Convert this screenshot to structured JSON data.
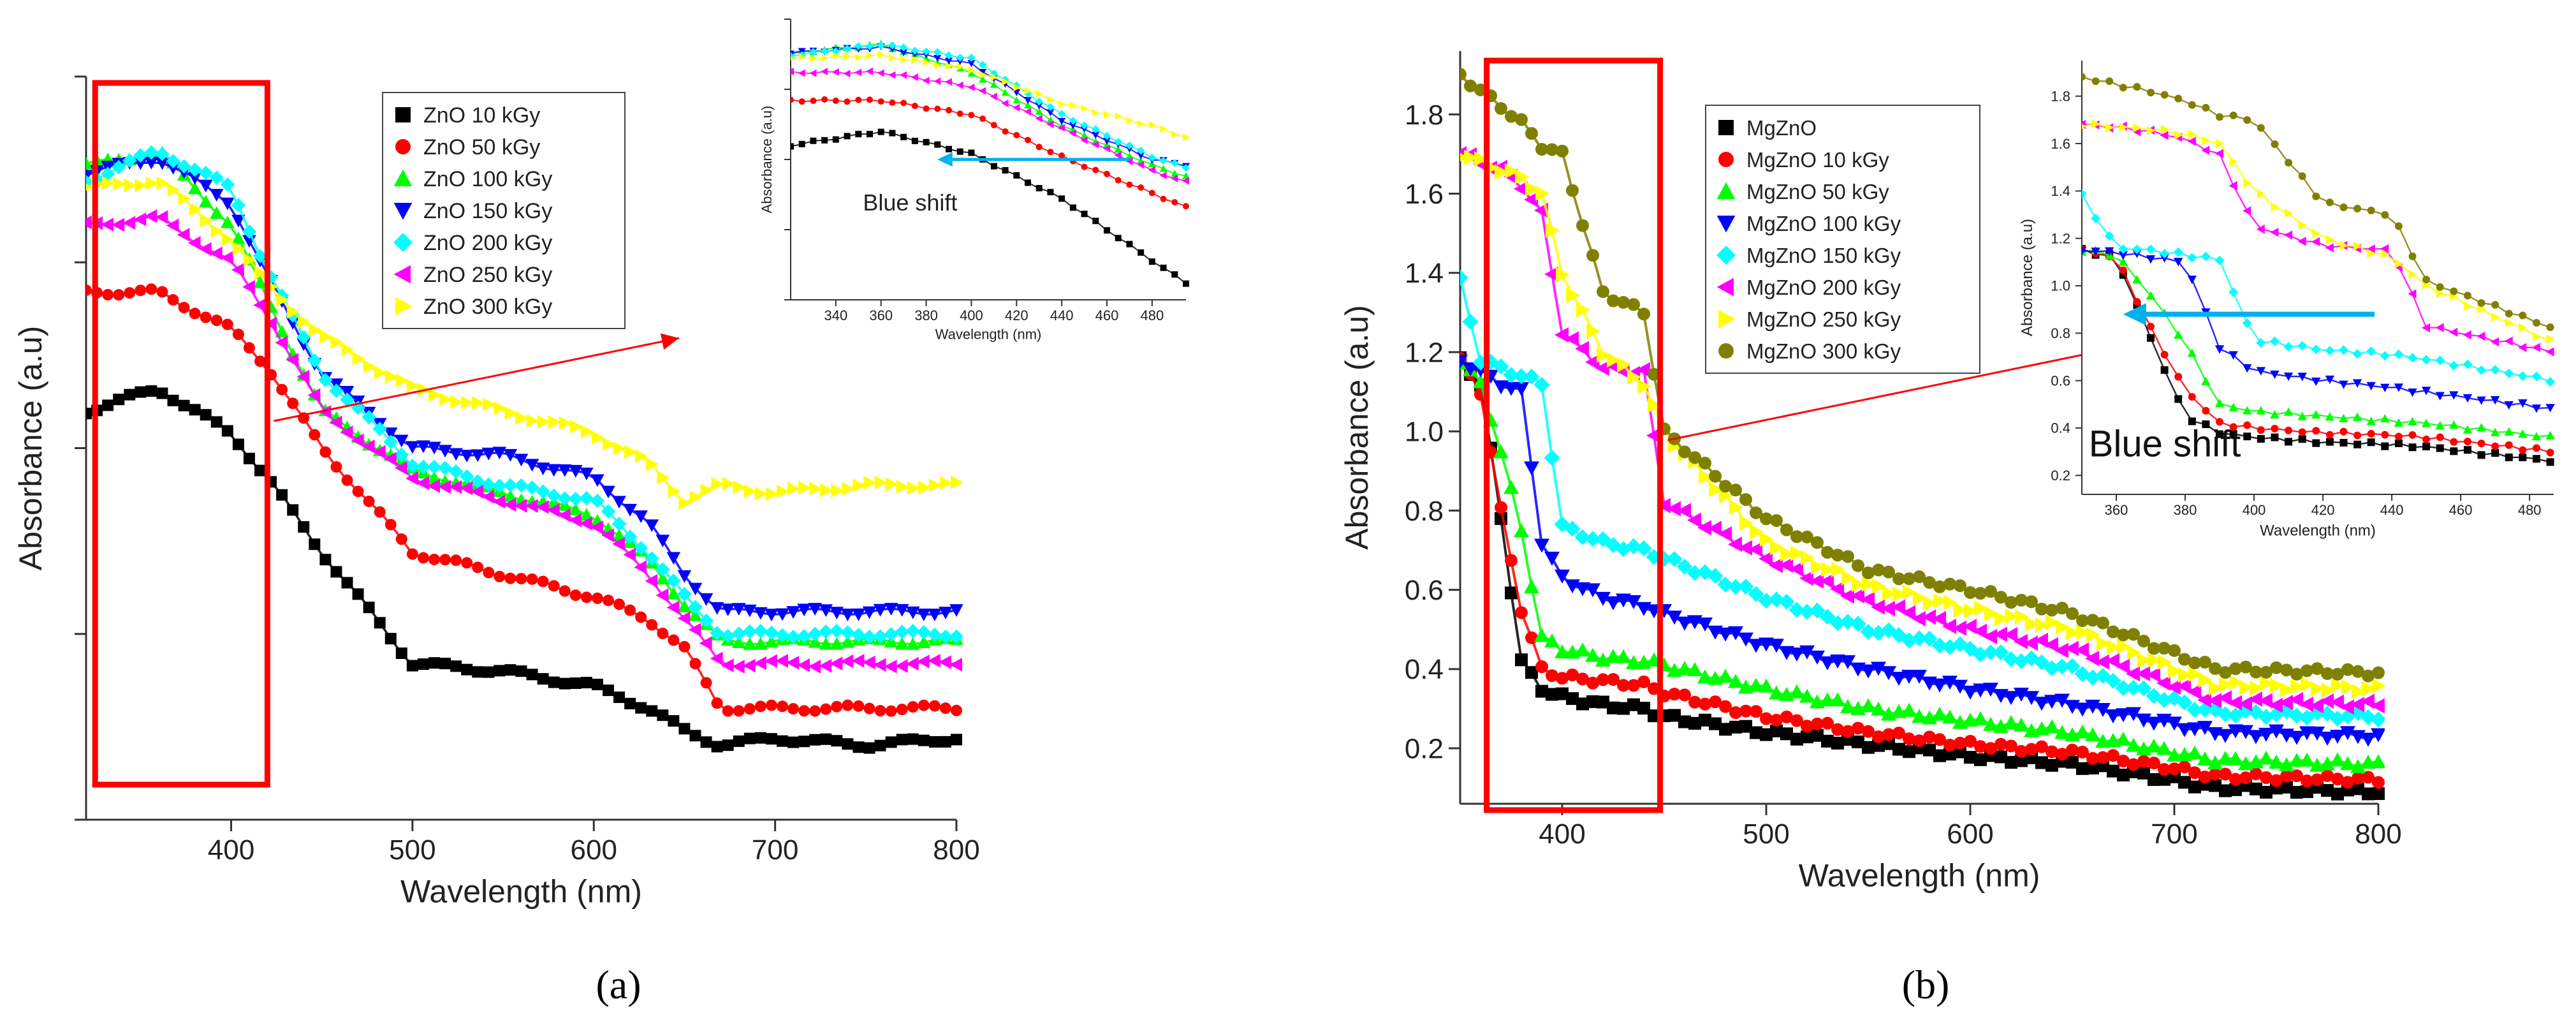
{
  "figure": {
    "panel_a_label": "(a)",
    "panel_b_label": "(b)"
  },
  "colors": {
    "s0": "#000000",
    "s1": "#ff0000",
    "s2": "#00ff00",
    "s3": "#0000ff",
    "s4": "#00ffff",
    "s5": "#ff00ff",
    "s6": "#ffff00",
    "s7": "#808000",
    "highlight": "#ff0000",
    "arrow": "#00b0f0"
  },
  "chart_data": [
    {
      "type": "scatter",
      "xlabel": "Wavelength (nm)",
      "ylabel": "Absorbance (a.u)",
      "xlim": [
        320,
        800
      ],
      "ylim": [
        0,
        1
      ],
      "x_ticks": [
        400,
        500,
        600,
        700,
        800
      ],
      "y_tick_labels": false,
      "grid": false,
      "legend": "top",
      "highlight_box": [
        325,
        420
      ],
      "x": [
        320,
        360,
        400,
        420,
        450,
        500,
        550,
        600,
        630,
        650,
        670,
        700,
        750,
        800
      ],
      "series": [
        {
          "name": "ZnO 10 kGy",
          "marker": "square",
          "values": [
            0.55,
            0.58,
            0.52,
            0.46,
            0.36,
            0.21,
            0.2,
            0.18,
            0.15,
            0.12,
            0.1,
            0.11,
            0.1,
            0.11
          ]
        },
        {
          "name": "ZnO 50 kGy",
          "marker": "circle",
          "values": [
            0.71,
            0.71,
            0.66,
            0.61,
            0.5,
            0.36,
            0.33,
            0.3,
            0.27,
            0.23,
            0.15,
            0.15,
            0.15,
            0.15
          ]
        },
        {
          "name": "ZnO 100 kGy",
          "marker": "triangle-up",
          "values": [
            0.88,
            0.9,
            0.8,
            0.7,
            0.55,
            0.47,
            0.44,
            0.41,
            0.35,
            0.29,
            0.24,
            0.24,
            0.24,
            0.24
          ]
        },
        {
          "name": "ZnO 150 kGy",
          "marker": "triangle-down",
          "values": [
            0.87,
            0.89,
            0.83,
            0.73,
            0.6,
            0.5,
            0.49,
            0.46,
            0.4,
            0.33,
            0.28,
            0.28,
            0.28,
            0.28
          ]
        },
        {
          "name": "ZnO 200 kGy",
          "marker": "diamond",
          "values": [
            0.86,
            0.9,
            0.85,
            0.74,
            0.6,
            0.48,
            0.45,
            0.43,
            0.36,
            0.3,
            0.25,
            0.25,
            0.25,
            0.25
          ]
        },
        {
          "name": "ZnO 250 kGy",
          "marker": "triangle-left",
          "values": [
            0.8,
            0.81,
            0.75,
            0.68,
            0.55,
            0.46,
            0.43,
            0.4,
            0.33,
            0.27,
            0.21,
            0.21,
            0.21,
            0.21
          ]
        },
        {
          "name": "ZnO 300 kGy",
          "marker": "triangle-right",
          "values": [
            0.85,
            0.86,
            0.78,
            0.72,
            0.65,
            0.58,
            0.55,
            0.52,
            0.48,
            0.43,
            0.45,
            0.44,
            0.45,
            0.45
          ]
        }
      ],
      "inset": {
        "xlabel": "Wavelength (nm)",
        "ylabel": "Absorbance (a.u)",
        "xlim": [
          320,
          495
        ],
        "ylim": [
          0,
          1
        ],
        "x_ticks": [
          340,
          360,
          380,
          400,
          420,
          440,
          460,
          480
        ],
        "y_tick_labels": false,
        "annotation": "Blue shift",
        "arrow_from": 470,
        "arrow_to": 385,
        "x": [
          320,
          360,
          400,
          440,
          480,
          495
        ],
        "values": [
          [
            0.55,
            0.6,
            0.52,
            0.36,
            0.14,
            0.06
          ],
          [
            0.71,
            0.71,
            0.66,
            0.51,
            0.38,
            0.33
          ],
          [
            0.88,
            0.91,
            0.81,
            0.62,
            0.48,
            0.44
          ],
          [
            0.88,
            0.9,
            0.84,
            0.64,
            0.5,
            0.48
          ],
          [
            0.87,
            0.91,
            0.86,
            0.66,
            0.51,
            0.47
          ],
          [
            0.81,
            0.81,
            0.76,
            0.61,
            0.46,
            0.42
          ],
          [
            0.86,
            0.87,
            0.82,
            0.7,
            0.62,
            0.58
          ]
        ]
      }
    },
    {
      "type": "scatter",
      "xlabel": "Wavelength (nm)",
      "ylabel": "Absorbance (a.u)",
      "xlim": [
        350,
        800
      ],
      "ylim": [
        0.06,
        1.96
      ],
      "x_ticks": [
        400,
        500,
        600,
        700,
        800
      ],
      "y_ticks": [
        0.2,
        0.4,
        0.6,
        0.8,
        1.0,
        1.2,
        1.4,
        1.6,
        1.8
      ],
      "grid": false,
      "legend": "top-left",
      "highlight_box": [
        363,
        448
      ],
      "x": [
        350,
        360,
        370,
        380,
        390,
        400,
        420,
        440,
        450,
        500,
        550,
        600,
        650,
        700,
        720,
        800
      ],
      "series": [
        {
          "name": "MgZnO",
          "marker": "square",
          "values": [
            1.18,
            1.12,
            0.78,
            0.42,
            0.35,
            0.33,
            0.31,
            0.3,
            0.28,
            0.24,
            0.21,
            0.18,
            0.16,
            0.12,
            0.1,
            0.09
          ]
        },
        {
          "name": "MgZnO 10 kGy",
          "marker": "circle",
          "values": [
            1.18,
            1.1,
            0.8,
            0.55,
            0.4,
            0.38,
            0.37,
            0.36,
            0.34,
            0.28,
            0.24,
            0.21,
            0.19,
            0.15,
            0.13,
            0.12
          ]
        },
        {
          "name": "MgZnO 50 kGy",
          "marker": "triangle-up",
          "values": [
            1.18,
            1.12,
            0.95,
            0.75,
            0.48,
            0.45,
            0.43,
            0.42,
            0.41,
            0.35,
            0.3,
            0.27,
            0.24,
            0.19,
            0.17,
            0.16
          ]
        },
        {
          "name": "MgZnO 100 kGy",
          "marker": "triangle-down",
          "values": [
            1.18,
            1.15,
            1.12,
            1.1,
            0.72,
            0.63,
            0.58,
            0.56,
            0.54,
            0.46,
            0.4,
            0.35,
            0.31,
            0.26,
            0.24,
            0.23
          ]
        },
        {
          "name": "MgZnO 150 kGy",
          "marker": "diamond",
          "values": [
            1.38,
            1.18,
            1.16,
            1.14,
            1.12,
            0.76,
            0.72,
            0.7,
            0.68,
            0.58,
            0.5,
            0.45,
            0.4,
            0.32,
            0.29,
            0.28
          ]
        },
        {
          "name": "MgZnO 200 kGy",
          "marker": "triangle-left",
          "values": [
            1.7,
            1.68,
            1.66,
            1.62,
            1.55,
            1.25,
            1.16,
            1.15,
            0.82,
            0.68,
            0.57,
            0.5,
            0.45,
            0.36,
            0.32,
            0.31
          ]
        },
        {
          "name": "MgZnO 250 kGy",
          "marker": "triangle-right",
          "values": [
            1.7,
            1.68,
            1.66,
            1.64,
            1.6,
            1.4,
            1.2,
            1.12,
            1.0,
            0.72,
            0.61,
            0.55,
            0.5,
            0.4,
            0.36,
            0.35
          ]
        },
        {
          "name": "MgZnO 300 kGy",
          "marker": "circle",
          "values": [
            1.9,
            1.86,
            1.82,
            1.78,
            1.72,
            1.7,
            1.35,
            1.3,
            1.0,
            0.78,
            0.65,
            0.6,
            0.54,
            0.44,
            0.4,
            0.39
          ]
        }
      ],
      "inset": {
        "xlabel": "Wavelength (nm)",
        "ylabel": "Absorbance (a.u)",
        "xlim": [
          350,
          487
        ],
        "ylim": [
          0.12,
          1.95
        ],
        "x_ticks": [
          360,
          380,
          400,
          420,
          440,
          460,
          480
        ],
        "y_ticks": [
          0.2,
          0.4,
          0.6,
          0.8,
          1.0,
          1.2,
          1.4,
          1.6,
          1.8
        ],
        "annotation": "Blue shift",
        "arrow_from": 435,
        "arrow_to": 362,
        "x": [
          350,
          360,
          370,
          380,
          390,
          400,
          420,
          440,
          450,
          487
        ],
        "values": [
          [
            1.15,
            1.12,
            0.78,
            0.45,
            0.38,
            0.36,
            0.34,
            0.33,
            0.32,
            0.26
          ],
          [
            1.15,
            1.12,
            0.82,
            0.56,
            0.42,
            0.4,
            0.38,
            0.37,
            0.36,
            0.3
          ],
          [
            1.15,
            1.13,
            0.96,
            0.76,
            0.5,
            0.47,
            0.45,
            0.43,
            0.42,
            0.36
          ],
          [
            1.15,
            1.14,
            1.12,
            1.1,
            0.74,
            0.64,
            0.6,
            0.57,
            0.55,
            0.48
          ],
          [
            1.38,
            1.16,
            1.15,
            1.13,
            1.11,
            0.77,
            0.73,
            0.71,
            0.69,
            0.6
          ],
          [
            1.68,
            1.67,
            1.65,
            1.62,
            1.55,
            1.25,
            1.17,
            1.15,
            0.83,
            0.72
          ],
          [
            1.68,
            1.67,
            1.66,
            1.64,
            1.6,
            1.4,
            1.2,
            1.12,
            1.0,
            0.76
          ],
          [
            1.88,
            1.85,
            1.82,
            1.78,
            1.72,
            1.7,
            1.35,
            1.3,
            1.02,
            0.82
          ]
        ]
      }
    }
  ]
}
